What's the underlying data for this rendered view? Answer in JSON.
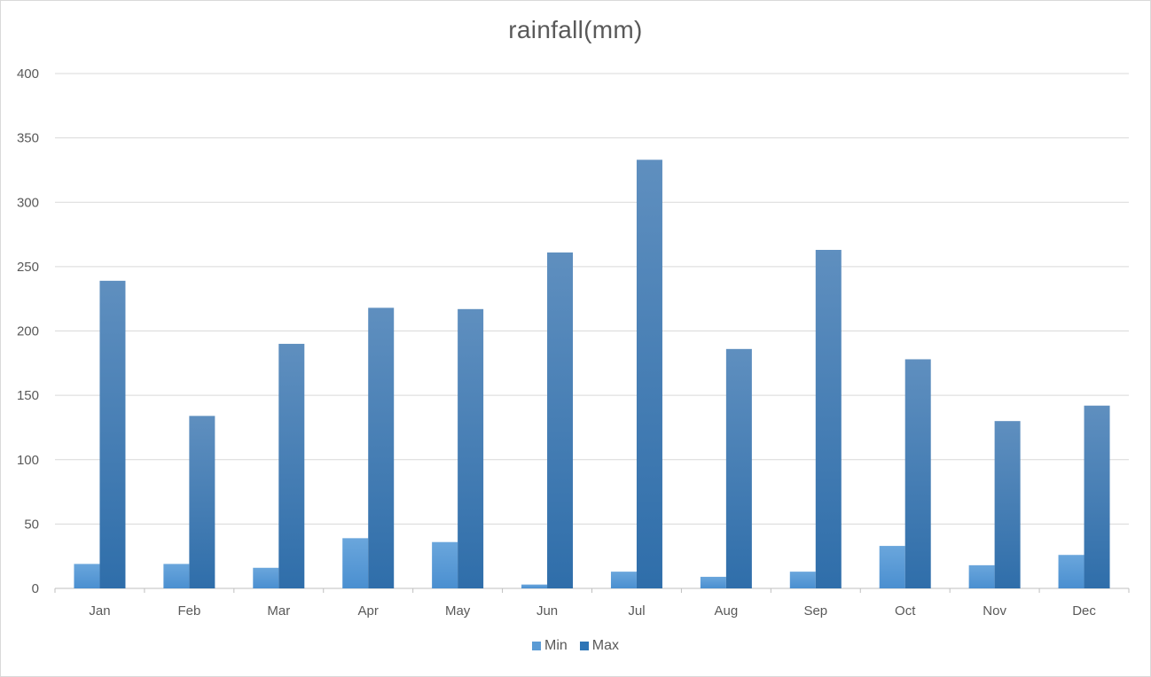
{
  "chart_data": {
    "type": "bar",
    "title": "rainfall(mm)",
    "xlabel": "",
    "ylabel": "",
    "categories": [
      "Jan",
      "Feb",
      "Mar",
      "Apr",
      "May",
      "Jun",
      "Jul",
      "Aug",
      "Sep",
      "Oct",
      "Nov",
      "Dec"
    ],
    "series": [
      {
        "name": "Min",
        "color": "#5b9bd5",
        "values": [
          19,
          19,
          16,
          39,
          36,
          3,
          13,
          9,
          13,
          33,
          18,
          26
        ]
      },
      {
        "name": "Max",
        "color": "#2e75b6",
        "values": [
          239,
          134,
          190,
          218,
          217,
          261,
          333,
          186,
          263,
          178,
          130,
          142
        ]
      }
    ],
    "ylim": [
      0,
      400
    ],
    "yticks": [
      "0",
      "50",
      "100",
      "150",
      "200",
      "250",
      "300",
      "350",
      "400"
    ],
    "grid": true,
    "legend_position": "bottom"
  }
}
